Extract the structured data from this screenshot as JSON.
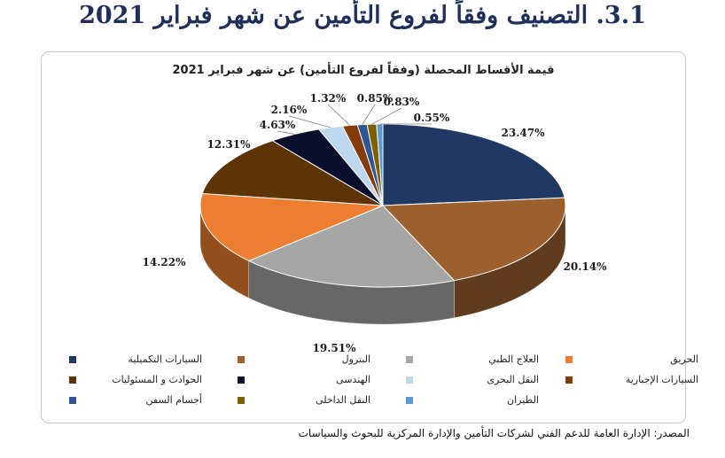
{
  "page": {
    "title": "3.1. التصنيف وفقاً لفروع التأمين عن شهر فبراير 2021",
    "source": "المصدر: الإدارة العامة للدعم الفني لشركات التأمين والإدارة المركزية للبحوث والسياسات"
  },
  "chart_data": {
    "type": "pie",
    "title": "قيمة الأقساط المحصلة (وفقاً لفروع التأمين) عن شهر فبراير 2021",
    "legend_position": "bottom",
    "slices": [
      {
        "label": "السيارات التكميلية",
        "value": 23.47,
        "display": "23.47%",
        "color": "#1f3864"
      },
      {
        "label": "البترول",
        "value": 20.14,
        "display": "20.14%",
        "color": "#9c5f2e"
      },
      {
        "label": "العلاج الطبي",
        "value": 19.51,
        "display": "19.51%",
        "color": "#a6a6a6"
      },
      {
        "label": "الحريق",
        "value": 14.22,
        "display": "14.22%",
        "color": "#ed7d31"
      },
      {
        "label": "الحوادث و المسئوليات",
        "value": 12.31,
        "display": "12.31%",
        "color": "#5e3305"
      },
      {
        "label": "الهندسى",
        "value": 4.63,
        "display": "4.63%",
        "color": "#0a0f2e"
      },
      {
        "label": "النقل البحرى",
        "value": 2.16,
        "display": "2.16%",
        "color": "#bdd7ee"
      },
      {
        "label": "السيارات الإجبارية",
        "value": 1.32,
        "display": "1.32%",
        "color": "#843c0c"
      },
      {
        "label": "أجسام السفن",
        "value": 0.85,
        "display": "0.85%",
        "color": "#2f5597"
      },
      {
        "label": "النقل الداخلى",
        "value": 0.83,
        "display": "0.83%",
        "color": "#7f6000"
      },
      {
        "label": "الطيران",
        "value": 0.55,
        "display": "0.55%",
        "color": "#5b9bd5"
      }
    ]
  }
}
